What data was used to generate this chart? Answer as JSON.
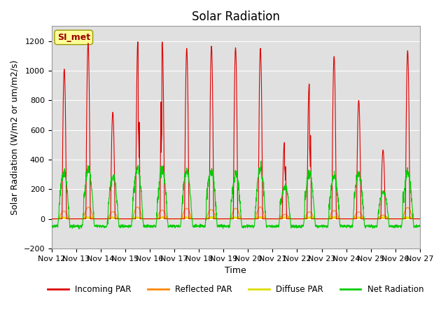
{
  "title": "Solar Radiation",
  "ylabel": "Solar Radiation (W/m2 or um/m2/s)",
  "xlabel": "Time",
  "ylim": [
    -200,
    1300
  ],
  "start_day": 12,
  "end_day": 27,
  "n_days": 15,
  "points_per_day": 144,
  "series_colors": {
    "incoming": "#dd0000",
    "reflected": "#ff8800",
    "diffuse": "#dddd00",
    "net": "#00cc00"
  },
  "series_labels": [
    "Incoming PAR",
    "Reflected PAR",
    "Diffuse PAR",
    "Net Radiation"
  ],
  "legend_colors": [
    "#dd0000",
    "#ff8800",
    "#dddd00",
    "#00cc00"
  ],
  "station_label": "SI_met",
  "station_label_color": "#990000",
  "station_box_color": "#ffff99",
  "background_color": "#ffffff",
  "plot_bg_color": "#e0e0e0",
  "grid_color": "#ffffff",
  "title_fontsize": 12,
  "label_fontsize": 9,
  "tick_fontsize": 8,
  "day_peaks": [
    1010,
    1185,
    720,
    1195,
    1195,
    1150,
    1165,
    1155,
    1150,
    515,
    910,
    1095,
    800,
    465,
    1135
  ],
  "net_night_value": -50,
  "net_day_peaks": [
    310,
    340,
    280,
    340,
    335,
    320,
    330,
    295,
    330,
    220,
    300,
    295,
    305,
    180,
    315
  ]
}
